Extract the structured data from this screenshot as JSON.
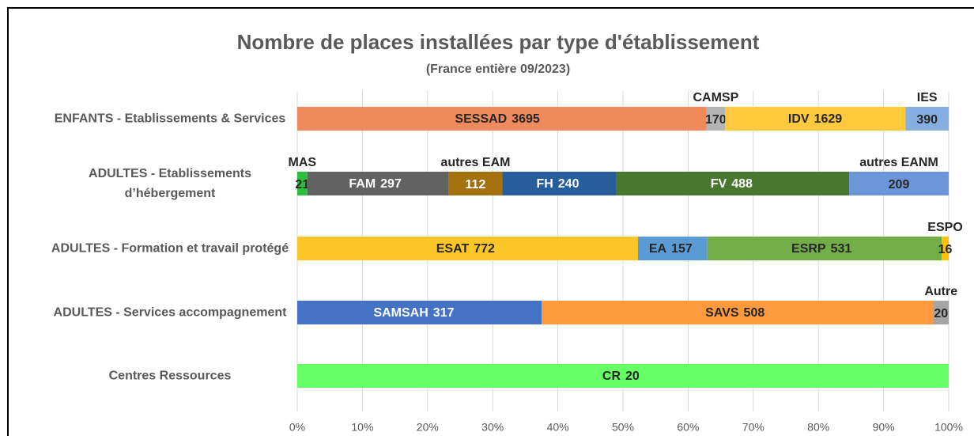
{
  "chart_data": {
    "type": "bar100h",
    "title": "Nombre de places installées par type d'établissement",
    "subtitle": "(France entière 09/2023)",
    "categories": [
      "ENFANTS - Etablissements & Services",
      "ADULTES - Etablissements d’hébergement",
      "ADULTES - Formation et travail protégé",
      "ADULTES - Services accompagnement",
      "Centres Ressources"
    ],
    "stacks": [
      [
        {
          "name": "SESSAD",
          "value": 3695,
          "color": "#f08a5d"
        },
        {
          "name": "CAMSP",
          "value": 170,
          "color": "#b4b4b4"
        },
        {
          "name": "IDV",
          "value": 1629,
          "color": "#ffc83d"
        },
        {
          "name": "IES",
          "value": 390,
          "color": "#86aee0"
        }
      ],
      [
        {
          "name": "MAS",
          "value": 21,
          "color": "#2fbf3f"
        },
        {
          "name": "FAM",
          "value": 297,
          "color": "#626262"
        },
        {
          "name": "autres EAM",
          "value": 112,
          "color": "#a5700e"
        },
        {
          "name": "FH",
          "value": 240,
          "color": "#285d9c"
        },
        {
          "name": "FV",
          "value": 488,
          "color": "#4a7730"
        },
        {
          "name": "autres EANM",
          "value": 209,
          "color": "#6c95d8"
        }
      ],
      [
        {
          "name": "ESAT",
          "value": 772,
          "color": "#ffc62a"
        },
        {
          "name": "EA",
          "value": 157,
          "color": "#5b9bd5"
        },
        {
          "name": "ESRP",
          "value": 531,
          "color": "#72ad47"
        },
        {
          "name": "ESPO",
          "value": 16,
          "color": "#ffc000"
        }
      ],
      [
        {
          "name": "SAMSAH",
          "value": 317,
          "color": "#4472c4"
        },
        {
          "name": "SAVS",
          "value": 508,
          "color": "#ff9a3e"
        },
        {
          "name": "Autre",
          "value": 20,
          "color": "#a5a5a5"
        }
      ],
      [
        {
          "name": "CR",
          "value": 20,
          "color": "#66ff66"
        }
      ]
    ],
    "xlim": [
      0,
      100
    ],
    "xticks": [
      {
        "value": 0,
        "label": "0%"
      },
      {
        "value": 10,
        "label": "10%"
      },
      {
        "value": 20,
        "label": "20%"
      },
      {
        "value": 30,
        "label": "30%"
      },
      {
        "value": 40,
        "label": "40%"
      },
      {
        "value": 50,
        "label": "50%"
      },
      {
        "value": 60,
        "label": "60%"
      },
      {
        "value": 70,
        "label": "70%"
      },
      {
        "value": 80,
        "label": "80%"
      },
      {
        "value": 90,
        "label": "90%"
      },
      {
        "value": 100,
        "label": "100%"
      }
    ],
    "grid": true
  }
}
